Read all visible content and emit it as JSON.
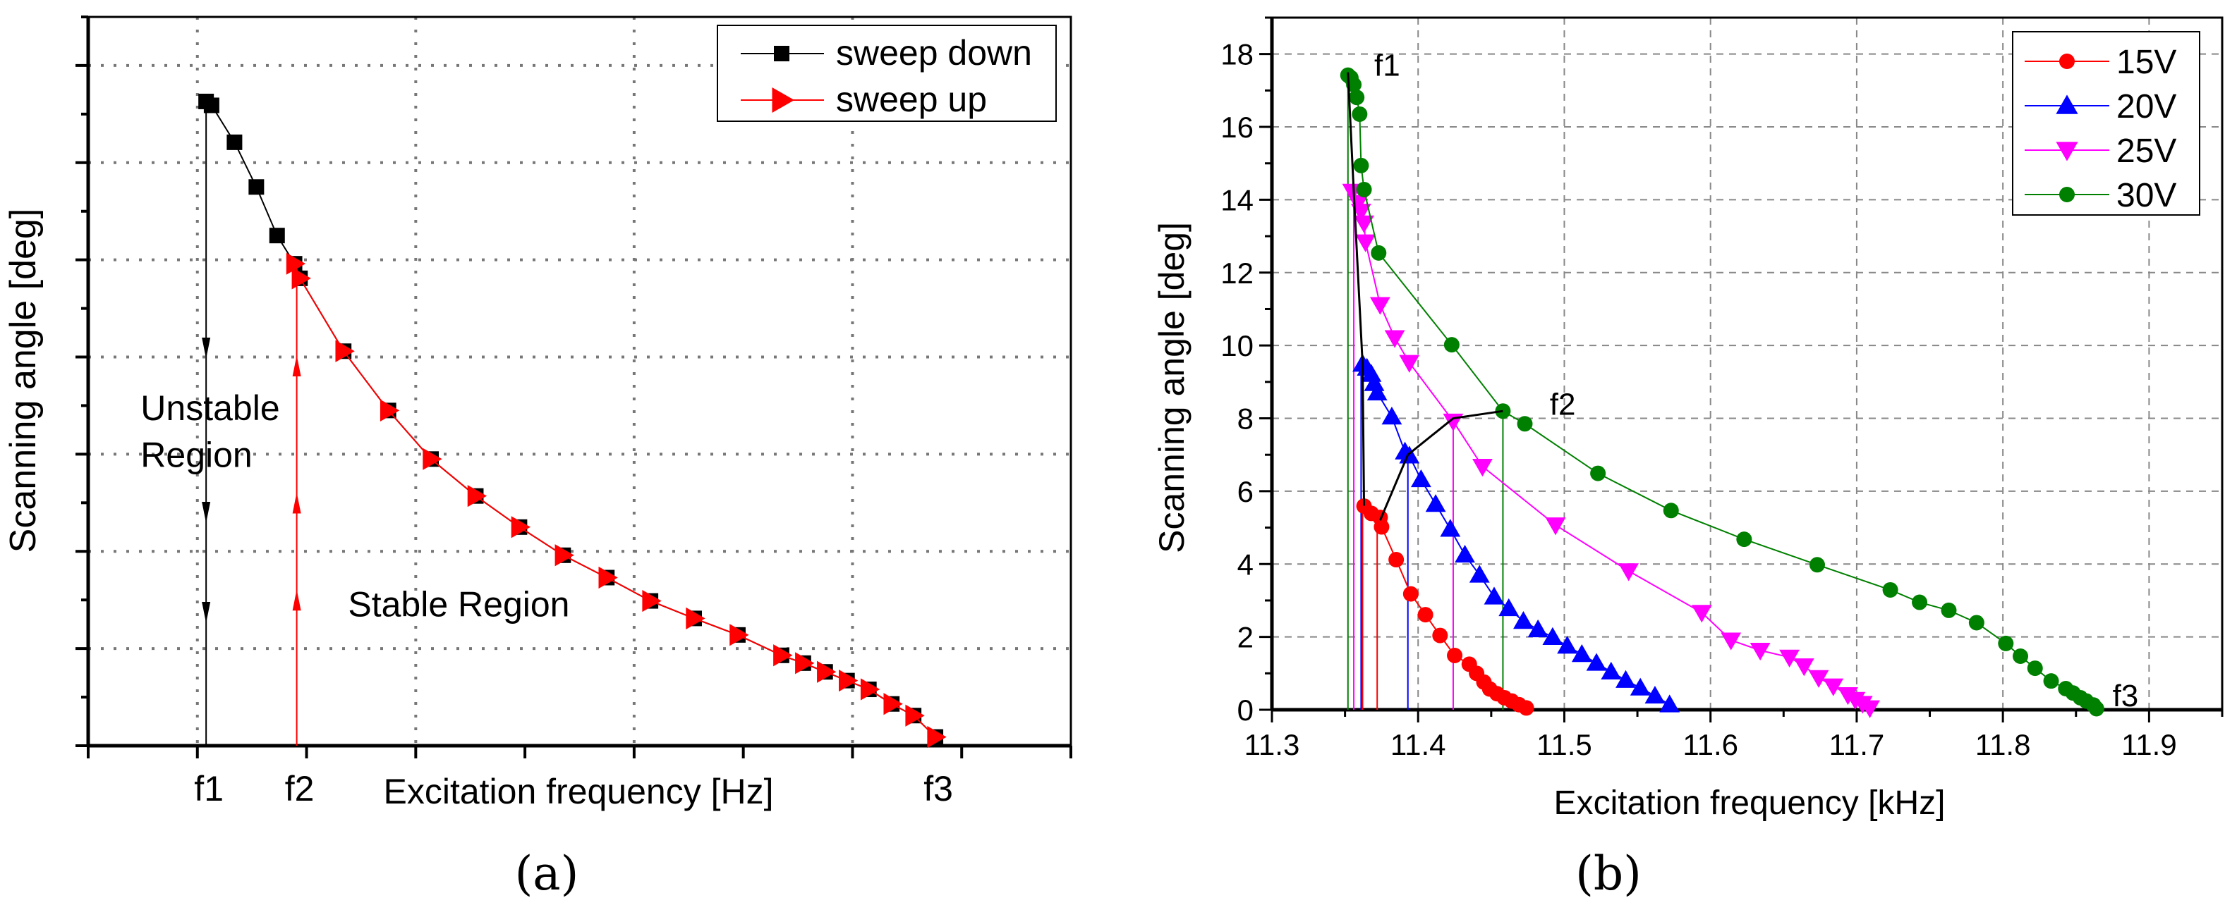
{
  "chart_data": [
    {
      "panel": "(a)",
      "type": "line",
      "xlabel": "Excitation frequency [Hz]",
      "ylabel": "Scanning angle [deg]",
      "xlim": [
        0,
        9
      ],
      "ylim": [
        0,
        7.5
      ],
      "grid": true,
      "xtick_labels": [
        {
          "x": 1.08,
          "label": "f1"
        },
        {
          "x": 1.91,
          "label": "f2"
        },
        {
          "x": 7.76,
          "label": "f3"
        }
      ],
      "legend": {
        "placement": "top-right",
        "entries": [
          "sweep down",
          "sweep up"
        ]
      },
      "annotations": [
        {
          "text": "Unstable",
          "x": 0.48,
          "y": 3.35
        },
        {
          "text": "Region",
          "x": 0.48,
          "y": 2.87
        },
        {
          "text": "Stable Region",
          "x": 2.38,
          "y": 1.33
        }
      ],
      "series": [
        {
          "name": "sweep down",
          "color": "#000000",
          "marker": "square",
          "x": [
            1.08,
            1.13,
            1.34,
            1.54,
            1.73,
            1.89,
            1.94,
            2.34,
            2.75,
            3.14,
            3.55,
            3.95,
            4.35,
            4.75,
            5.15,
            5.55,
            5.95,
            6.35,
            6.55,
            6.75,
            6.95,
            7.15,
            7.36,
            7.56,
            7.76
          ],
          "y": [
            6.63,
            6.59,
            6.21,
            5.75,
            5.25,
            4.96,
            4.81,
            4.06,
            3.45,
            2.95,
            2.57,
            2.25,
            1.96,
            1.73,
            1.49,
            1.31,
            1.14,
            0.93,
            0.85,
            0.76,
            0.67,
            0.58,
            0.43,
            0.31,
            0.09
          ]
        },
        {
          "name": "sweep up",
          "color": "#ff0000",
          "marker": "triangle-right",
          "x": [
            1.89,
            1.94,
            2.34,
            2.75,
            3.14,
            3.55,
            3.95,
            4.35,
            4.75,
            5.15,
            5.55,
            5.95,
            6.35,
            6.55,
            6.75,
            6.95,
            7.15,
            7.36,
            7.56,
            7.76
          ],
          "y": [
            4.96,
            4.81,
            4.06,
            3.45,
            2.95,
            2.57,
            2.25,
            1.96,
            1.73,
            1.49,
            1.31,
            1.14,
            0.93,
            0.85,
            0.76,
            0.67,
            0.58,
            0.43,
            0.31,
            0.09
          ]
        }
      ],
      "jump_lines": [
        {
          "color": "#000000",
          "x": 1.08,
          "y_from": 6.63,
          "y_to": 0,
          "direction": "down",
          "arrows_at": [
            4.04,
            2.35,
            1.32
          ]
        },
        {
          "color": "#ff0000",
          "x": 1.91,
          "y_from": 0,
          "y_to": 4.81,
          "direction": "up",
          "arrows_at": [
            3.96,
            2.55,
            1.55
          ]
        }
      ]
    },
    {
      "panel": "(b)",
      "type": "line",
      "xlabel": "Excitation frequency [kHz]",
      "ylabel": "Scanning angle [deg]",
      "xlim": [
        11.3,
        11.95
      ],
      "ylim": [
        0,
        19
      ],
      "xticks": [
        "11.3",
        "11.4",
        "11.5",
        "11.6",
        "11.7",
        "11.8",
        "11.9"
      ],
      "yticks": [
        "0",
        "2",
        "4",
        "6",
        "8",
        "10",
        "12",
        "14",
        "16",
        "18"
      ],
      "grid": true,
      "legend": {
        "placement": "top-right",
        "entries": [
          "15V",
          "20V",
          "25V",
          "30V"
        ]
      },
      "annotations": [
        {
          "text": "f1",
          "x": 11.37,
          "y": 17.4
        },
        {
          "text": "f2",
          "x": 11.49,
          "y": 8.1
        },
        {
          "text": "f3",
          "x": 11.875,
          "y": 0.1
        }
      ],
      "series": [
        {
          "name": "15V",
          "color": "#ff0000",
          "marker": "circle",
          "x": [
            11.363,
            11.368,
            11.374,
            11.375,
            11.385,
            11.395,
            11.405,
            11.415,
            11.425,
            11.435,
            11.44,
            11.445,
            11.449,
            11.454,
            11.459,
            11.464,
            11.469,
            11.474
          ],
          "y": [
            5.59,
            5.39,
            5.28,
            5.02,
            4.12,
            3.18,
            2.61,
            2.04,
            1.49,
            1.25,
            1.0,
            0.76,
            0.57,
            0.44,
            0.33,
            0.24,
            0.14,
            0.05
          ],
          "jump_x": [
            11.362,
            11.372
          ]
        },
        {
          "name": "20V",
          "color": "#0000ff",
          "marker": "triangle-up",
          "x": [
            11.362,
            11.365,
            11.368,
            11.37,
            11.372,
            11.382,
            11.391,
            11.394,
            11.402,
            11.412,
            11.422,
            11.432,
            11.442,
            11.452,
            11.462,
            11.472,
            11.482,
            11.492,
            11.502,
            11.512,
            11.522,
            11.532,
            11.542,
            11.552,
            11.562,
            11.572
          ],
          "y": [
            9.49,
            9.38,
            9.21,
            8.96,
            8.7,
            8.04,
            7.08,
            6.97,
            6.32,
            5.64,
            4.96,
            4.25,
            3.7,
            3.1,
            2.78,
            2.43,
            2.2,
            1.99,
            1.75,
            1.52,
            1.28,
            1.04,
            0.81,
            0.6,
            0.38,
            0.14
          ],
          "jump_x": [
            11.361,
            11.393
          ]
        },
        {
          "name": "25V",
          "color": "#ff00ff",
          "marker": "triangle-down",
          "x": [
            11.355,
            11.359,
            11.361,
            11.363,
            11.364,
            11.374,
            11.384,
            11.394,
            11.424,
            11.444,
            11.494,
            11.544,
            11.594,
            11.614,
            11.634,
            11.654,
            11.664,
            11.674,
            11.684,
            11.694,
            11.699,
            11.704,
            11.709
          ],
          "y": [
            14.23,
            13.92,
            13.68,
            13.36,
            12.84,
            11.12,
            10.21,
            9.53,
            7.92,
            6.68,
            5.07,
            3.81,
            2.67,
            1.91,
            1.63,
            1.44,
            1.2,
            0.88,
            0.65,
            0.41,
            0.28,
            0.17,
            0.05
          ],
          "jump_x": [
            11.356,
            11.424
          ]
        },
        {
          "name": "30V",
          "color": "#008000",
          "marker": "circle",
          "x": [
            11.352,
            11.354,
            11.356,
            11.358,
            11.36,
            11.361,
            11.363,
            11.373,
            11.423,
            11.458,
            11.473,
            11.523,
            11.573,
            11.623,
            11.673,
            11.723,
            11.743,
            11.763,
            11.782,
            11.802,
            11.812,
            11.822,
            11.833,
            11.843,
            11.848,
            11.853,
            11.857,
            11.862,
            11.864
          ],
          "y": [
            17.42,
            17.35,
            17.16,
            16.81,
            16.35,
            14.94,
            14.28,
            12.54,
            10.02,
            8.2,
            7.85,
            6.49,
            5.47,
            4.68,
            3.98,
            3.29,
            2.95,
            2.73,
            2.39,
            1.82,
            1.47,
            1.14,
            0.79,
            0.58,
            0.46,
            0.33,
            0.24,
            0.13,
            0.03
          ],
          "jump_x": [
            11.352,
            11.458
          ]
        }
      ],
      "boundary_lines": [
        {
          "name": "f1-line",
          "x": [
            11.352,
            11.356,
            11.362,
            11.363
          ],
          "y": [
            17.5,
            14.2,
            9.5,
            5.6
          ]
        },
        {
          "name": "f2-line",
          "x": [
            11.374,
            11.393,
            11.424,
            11.458
          ],
          "y": [
            5.2,
            7.0,
            8.0,
            8.2
          ]
        }
      ]
    }
  ]
}
